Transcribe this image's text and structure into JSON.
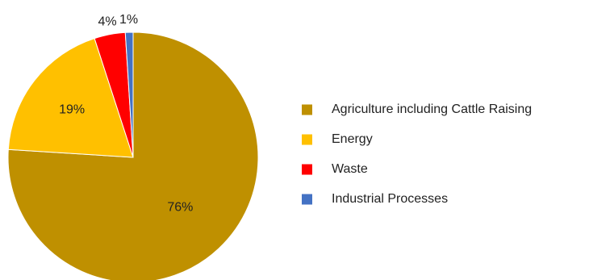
{
  "chart_data": {
    "type": "pie",
    "title": "",
    "legend_position": "right",
    "start_angle_deg": 90,
    "direction": "clockwise",
    "slices": [
      {
        "label": "Agriculture including Cattle Raising",
        "value": 76,
        "display": "76%",
        "color": "#bf9000"
      },
      {
        "label": "Energy",
        "value": 19,
        "display": "19%",
        "color": "#ffc000"
      },
      {
        "label": "Waste",
        "value": 4,
        "display": "4%",
        "color": "#ff0000"
      },
      {
        "label": "Industrial Processes",
        "value": 1,
        "display": "1%",
        "color": "#4472c4"
      }
    ]
  }
}
